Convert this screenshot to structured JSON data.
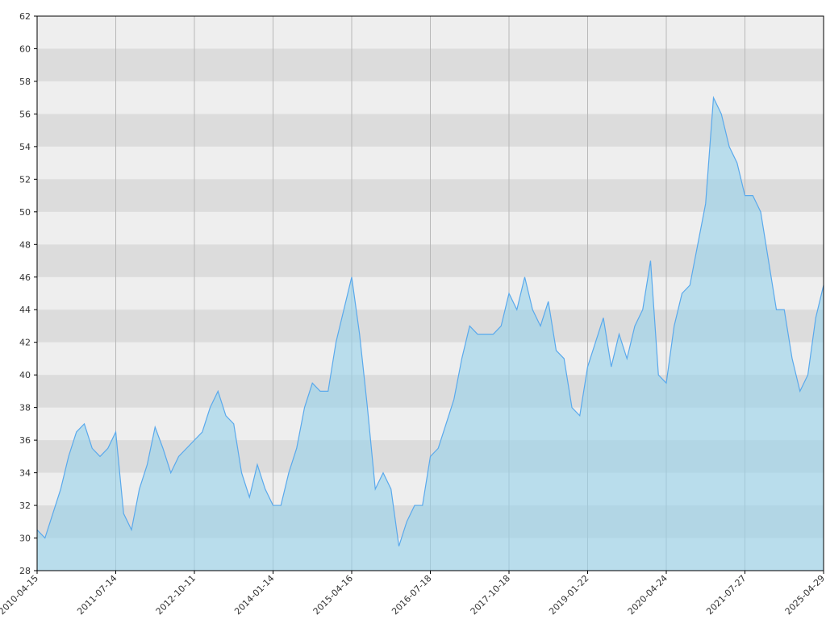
{
  "chart_data": {
    "type": "area",
    "categories": [
      "2010-04-15",
      null,
      null,
      null,
      null,
      null,
      null,
      null,
      null,
      null,
      "2011-07-14",
      null,
      null,
      null,
      null,
      null,
      null,
      null,
      null,
      null,
      "2012-10-11",
      null,
      null,
      null,
      null,
      null,
      null,
      null,
      null,
      null,
      "2014-01-14",
      null,
      null,
      null,
      null,
      null,
      null,
      null,
      null,
      null,
      "2015-04-16",
      null,
      null,
      null,
      null,
      null,
      null,
      null,
      null,
      null,
      "2016-07-18",
      null,
      null,
      null,
      null,
      null,
      null,
      null,
      null,
      null,
      "2017-10-18",
      null,
      null,
      null,
      null,
      null,
      null,
      null,
      null,
      null,
      "2019-01-22",
      null,
      null,
      null,
      null,
      null,
      null,
      null,
      null,
      null,
      "2020-04-24",
      null,
      null,
      null,
      null,
      null,
      null,
      null,
      null,
      null,
      "2021-07-27",
      null,
      null,
      null,
      null,
      null,
      null,
      null,
      null,
      null,
      "2025-04-29"
    ],
    "values": [
      30.5,
      30,
      31.5,
      33,
      35,
      36.5,
      37,
      35.5,
      35,
      35.5,
      36.5,
      31.5,
      30.5,
      33,
      34.5,
      36.8,
      35.5,
      34,
      35,
      35.5,
      36,
      36.5,
      38,
      39,
      37.5,
      37,
      34,
      32.5,
      34.5,
      33,
      32,
      32,
      34,
      35.5,
      38,
      39.5,
      39,
      39,
      42,
      44,
      46,
      42.5,
      38,
      33,
      34,
      33,
      29.5,
      31,
      32,
      32,
      35,
      35.5,
      37,
      38.5,
      41,
      43,
      42.5,
      42.5,
      42.5,
      43,
      45,
      44,
      46,
      44,
      43,
      44.5,
      41.5,
      41,
      38,
      37.5,
      40.5,
      42,
      43.5,
      40.5,
      42.5,
      41,
      43,
      44,
      47,
      40,
      39.5,
      43,
      45,
      45.5,
      48,
      50.5,
      57,
      56,
      54,
      53,
      51,
      51,
      50,
      47,
      44,
      44,
      41,
      39,
      40,
      43.5,
      45.5
    ],
    "color": "#5aa9ec",
    "ylim": [
      28,
      62
    ],
    "yticks": [
      28,
      30,
      32,
      34,
      36,
      38,
      40,
      42,
      44,
      46,
      48,
      50,
      52,
      54,
      56,
      58,
      60,
      62
    ],
    "grid": true
  }
}
